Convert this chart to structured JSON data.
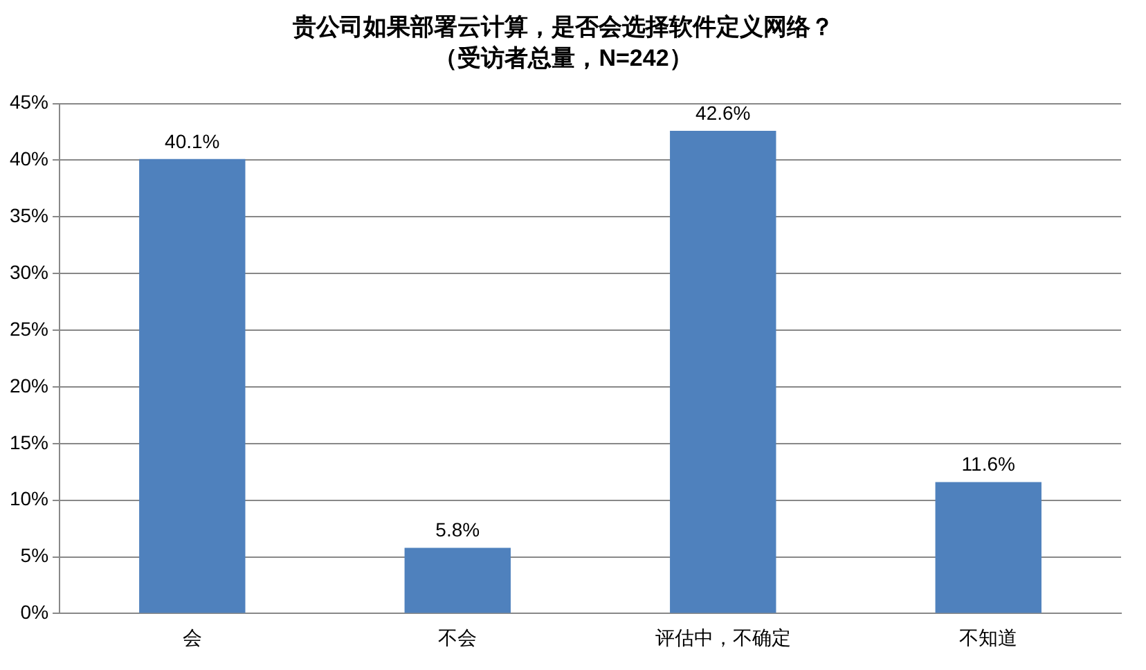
{
  "chart_data": {
    "type": "bar",
    "title": "贵公司如果部署云计算，是否会选择软件定义网络？",
    "subtitle": "（受访者总量，N=242）",
    "categories": [
      "会",
      "不会",
      "评估中，不确定",
      "不知道"
    ],
    "values": [
      40.1,
      5.8,
      42.6,
      11.6
    ],
    "value_labels": [
      "40.1%",
      "5.8%",
      "42.6%",
      "11.6%"
    ],
    "color": "#4f81bd",
    "ylim": [
      0,
      45
    ],
    "yticks": [
      {
        "value": 0,
        "label": "0%"
      },
      {
        "value": 5,
        "label": "5%"
      },
      {
        "value": 10,
        "label": "10%"
      },
      {
        "value": 15,
        "label": "15%"
      },
      {
        "value": 20,
        "label": "20%"
      },
      {
        "value": 25,
        "label": "25%"
      },
      {
        "value": 30,
        "label": "30%"
      },
      {
        "value": 35,
        "label": "35%"
      },
      {
        "value": 40,
        "label": "40%"
      },
      {
        "value": 45,
        "label": "45%"
      }
    ],
    "grid": "y",
    "legend": false
  }
}
